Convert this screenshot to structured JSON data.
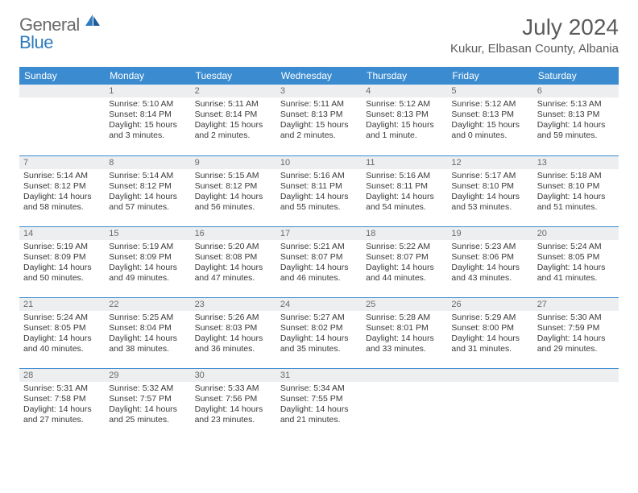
{
  "logo": {
    "general": "General",
    "blue": "Blue"
  },
  "title": "July 2024",
  "location": "Kukur, Elbasan County, Albania",
  "colors": {
    "header_bg": "#3b8bd0",
    "header_text": "#ffffff",
    "daynum_bg": "#eceef0",
    "daynum_text": "#6a6a6a",
    "body_text": "#3a3a3a",
    "title_text": "#5a5a5a",
    "logo_gray": "#6a6a6a",
    "logo_blue": "#2d7bc0",
    "rule": "#3b8bd0"
  },
  "weekdays": [
    "Sunday",
    "Monday",
    "Tuesday",
    "Wednesday",
    "Thursday",
    "Friday",
    "Saturday"
  ],
  "weeks": [
    [
      null,
      {
        "n": "1",
        "sr": "5:10 AM",
        "ss": "8:14 PM",
        "dl": "15 hours and 3 minutes."
      },
      {
        "n": "2",
        "sr": "5:11 AM",
        "ss": "8:14 PM",
        "dl": "15 hours and 2 minutes."
      },
      {
        "n": "3",
        "sr": "5:11 AM",
        "ss": "8:13 PM",
        "dl": "15 hours and 2 minutes."
      },
      {
        "n": "4",
        "sr": "5:12 AM",
        "ss": "8:13 PM",
        "dl": "15 hours and 1 minute."
      },
      {
        "n": "5",
        "sr": "5:12 AM",
        "ss": "8:13 PM",
        "dl": "15 hours and 0 minutes."
      },
      {
        "n": "6",
        "sr": "5:13 AM",
        "ss": "8:13 PM",
        "dl": "14 hours and 59 minutes."
      }
    ],
    [
      {
        "n": "7",
        "sr": "5:14 AM",
        "ss": "8:12 PM",
        "dl": "14 hours and 58 minutes."
      },
      {
        "n": "8",
        "sr": "5:14 AM",
        "ss": "8:12 PM",
        "dl": "14 hours and 57 minutes."
      },
      {
        "n": "9",
        "sr": "5:15 AM",
        "ss": "8:12 PM",
        "dl": "14 hours and 56 minutes."
      },
      {
        "n": "10",
        "sr": "5:16 AM",
        "ss": "8:11 PM",
        "dl": "14 hours and 55 minutes."
      },
      {
        "n": "11",
        "sr": "5:16 AM",
        "ss": "8:11 PM",
        "dl": "14 hours and 54 minutes."
      },
      {
        "n": "12",
        "sr": "5:17 AM",
        "ss": "8:10 PM",
        "dl": "14 hours and 53 minutes."
      },
      {
        "n": "13",
        "sr": "5:18 AM",
        "ss": "8:10 PM",
        "dl": "14 hours and 51 minutes."
      }
    ],
    [
      {
        "n": "14",
        "sr": "5:19 AM",
        "ss": "8:09 PM",
        "dl": "14 hours and 50 minutes."
      },
      {
        "n": "15",
        "sr": "5:19 AM",
        "ss": "8:09 PM",
        "dl": "14 hours and 49 minutes."
      },
      {
        "n": "16",
        "sr": "5:20 AM",
        "ss": "8:08 PM",
        "dl": "14 hours and 47 minutes."
      },
      {
        "n": "17",
        "sr": "5:21 AM",
        "ss": "8:07 PM",
        "dl": "14 hours and 46 minutes."
      },
      {
        "n": "18",
        "sr": "5:22 AM",
        "ss": "8:07 PM",
        "dl": "14 hours and 44 minutes."
      },
      {
        "n": "19",
        "sr": "5:23 AM",
        "ss": "8:06 PM",
        "dl": "14 hours and 43 minutes."
      },
      {
        "n": "20",
        "sr": "5:24 AM",
        "ss": "8:05 PM",
        "dl": "14 hours and 41 minutes."
      }
    ],
    [
      {
        "n": "21",
        "sr": "5:24 AM",
        "ss": "8:05 PM",
        "dl": "14 hours and 40 minutes."
      },
      {
        "n": "22",
        "sr": "5:25 AM",
        "ss": "8:04 PM",
        "dl": "14 hours and 38 minutes."
      },
      {
        "n": "23",
        "sr": "5:26 AM",
        "ss": "8:03 PM",
        "dl": "14 hours and 36 minutes."
      },
      {
        "n": "24",
        "sr": "5:27 AM",
        "ss": "8:02 PM",
        "dl": "14 hours and 35 minutes."
      },
      {
        "n": "25",
        "sr": "5:28 AM",
        "ss": "8:01 PM",
        "dl": "14 hours and 33 minutes."
      },
      {
        "n": "26",
        "sr": "5:29 AM",
        "ss": "8:00 PM",
        "dl": "14 hours and 31 minutes."
      },
      {
        "n": "27",
        "sr": "5:30 AM",
        "ss": "7:59 PM",
        "dl": "14 hours and 29 minutes."
      }
    ],
    [
      {
        "n": "28",
        "sr": "5:31 AM",
        "ss": "7:58 PM",
        "dl": "14 hours and 27 minutes."
      },
      {
        "n": "29",
        "sr": "5:32 AM",
        "ss": "7:57 PM",
        "dl": "14 hours and 25 minutes."
      },
      {
        "n": "30",
        "sr": "5:33 AM",
        "ss": "7:56 PM",
        "dl": "14 hours and 23 minutes."
      },
      {
        "n": "31",
        "sr": "5:34 AM",
        "ss": "7:55 PM",
        "dl": "14 hours and 21 minutes."
      },
      null,
      null,
      null
    ]
  ],
  "labels": {
    "sunrise_prefix": "Sunrise: ",
    "sunset_prefix": "Sunset: ",
    "daylight_prefix": "Daylight: "
  }
}
